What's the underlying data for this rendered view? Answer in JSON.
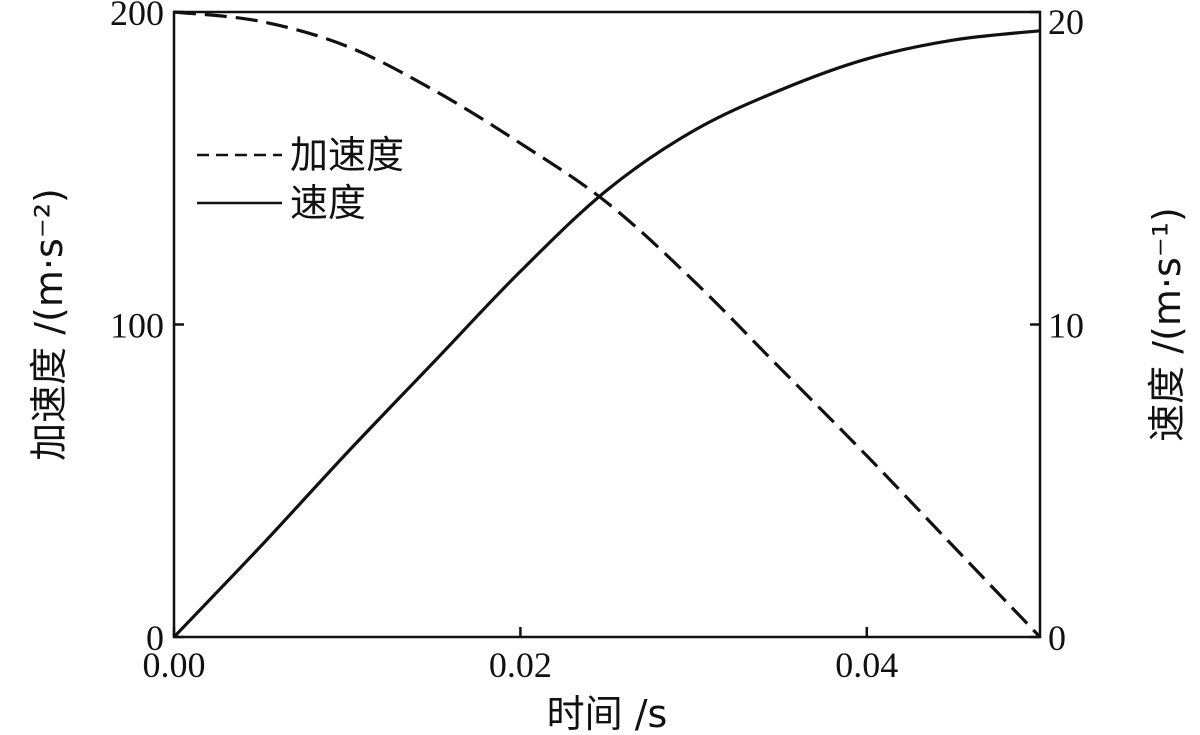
{
  "chart_data": {
    "type": "line",
    "xlabel": "时间 /s",
    "ylabel_left": "加速度 /(m·s⁻²)",
    "ylabel_right": "速度 /(m·s⁻¹)",
    "xlim": [
      0,
      0.05
    ],
    "ylim_left": [
      0,
      200
    ],
    "ylim_right": [
      0,
      20
    ],
    "x_ticks": [
      "0.00",
      "0.02",
      "0.04"
    ],
    "x_tick_values": [
      0,
      0.02,
      0.04
    ],
    "y_left_ticks": [
      "0",
      "100",
      "200"
    ],
    "y_left_tick_values": [
      0,
      100,
      200
    ],
    "y_right_ticks": [
      "0",
      "10",
      "20"
    ],
    "y_right_tick_values": [
      0,
      10,
      20
    ],
    "grid": false,
    "legend_position": "top-left",
    "series": [
      {
        "name": "加速度",
        "axis": "left",
        "style": "dashed",
        "x": [
          0,
          0.005,
          0.01,
          0.015,
          0.02,
          0.025,
          0.03,
          0.035,
          0.04,
          0.045,
          0.05
        ],
        "y": [
          200,
          197,
          189,
          175,
          158,
          139,
          114,
          86,
          58,
          29,
          0
        ]
      },
      {
        "name": "速度",
        "axis": "right",
        "style": "solid",
        "x": [
          0,
          0.005,
          0.01,
          0.015,
          0.02,
          0.025,
          0.03,
          0.035,
          0.04,
          0.045,
          0.05
        ],
        "y": [
          0,
          2.9,
          5.9,
          8.8,
          11.7,
          14.3,
          16.2,
          17.5,
          18.5,
          19.1,
          19.4
        ]
      }
    ]
  }
}
